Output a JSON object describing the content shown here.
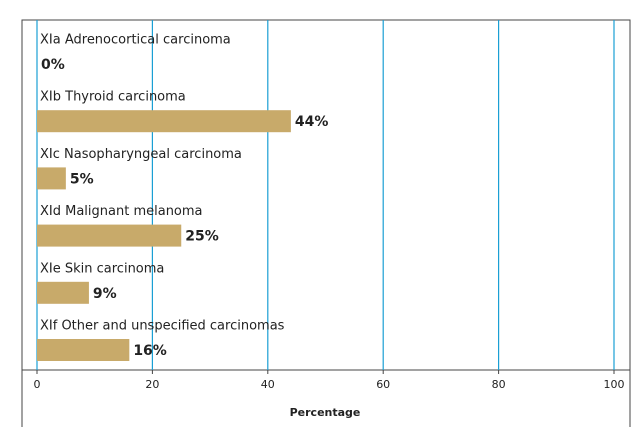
{
  "chart_data": {
    "type": "bar",
    "orientation": "horizontal",
    "categories": [
      "XIa Adrenocortical carcinoma",
      "XIb Thyroid carcinoma",
      "XIc Nasopharyngeal carcinoma",
      "XId Malignant melanoma",
      "XIe Skin carcinoma",
      "XIf Other and unspecified carcinomas"
    ],
    "values": [
      0,
      44,
      5,
      25,
      9,
      16
    ],
    "value_labels": [
      "0%",
      "44%",
      "5%",
      "25%",
      "9%",
      "16%"
    ],
    "color": "#c8aa6a",
    "grid_color": "#1a9fd4",
    "xlim": [
      0,
      100
    ],
    "xticks": [
      0,
      20,
      40,
      60,
      80,
      100
    ],
    "x_label": "Percentage",
    "grid": true
  }
}
